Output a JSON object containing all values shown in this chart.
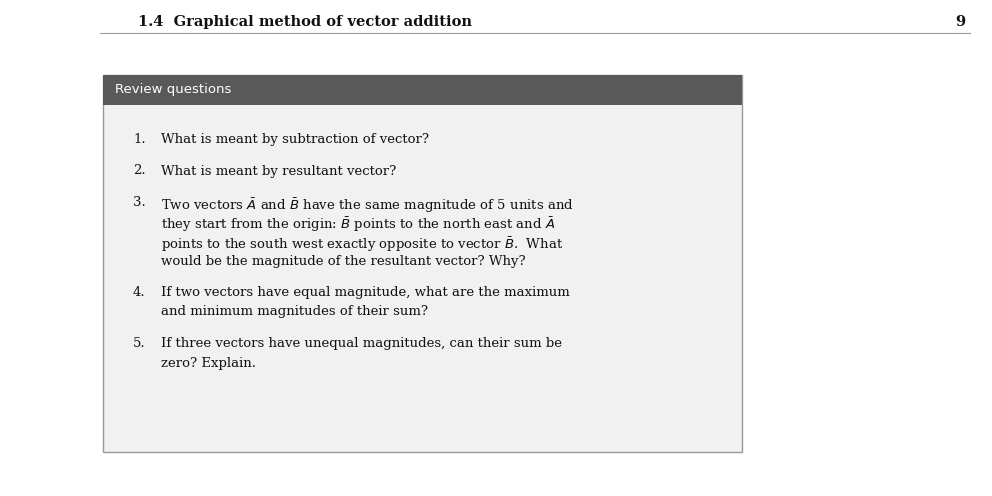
{
  "header_text": "1.4  Graphical method of vector addition",
  "page_number": "9",
  "header_fontsize": 10.5,
  "header_color": "#111111",
  "header_line_color": "#999999",
  "bg_color": "#ffffff",
  "box_bg_color": "#f2f1f1",
  "box_border_color": "#999999",
  "title_bar_color": "#595959",
  "title_bar_text": "Review questions",
  "title_bar_text_color": "#ffffff",
  "title_fontsize": 9.5,
  "body_fontsize": 9.5,
  "questions": [
    {
      "num": "1.",
      "lines": [
        "What is meant by subtraction of vector?"
      ]
    },
    {
      "num": "2.",
      "lines": [
        "What is meant by resultant vector?"
      ]
    },
    {
      "num": "3.",
      "lines": [
        "Two vectors $\\bar{A}$ and $\\bar{B}$ have the same magnitude of 5 units and",
        "they start from the origin: $\\bar{B}$ points to the north east and $\\bar{A}$",
        "points to the south west exactly opposite to vector $\\bar{B}$.  What",
        "would be the magnitude of the resultant vector? Why?"
      ]
    },
    {
      "num": "4.",
      "lines": [
        "If two vectors have equal magnitude, what are the maximum",
        "and minimum magnitudes of their sum?"
      ]
    },
    {
      "num": "5.",
      "lines": [
        "If three vectors have unequal magnitudes, can their sum be",
        "zero? Explain."
      ]
    }
  ]
}
